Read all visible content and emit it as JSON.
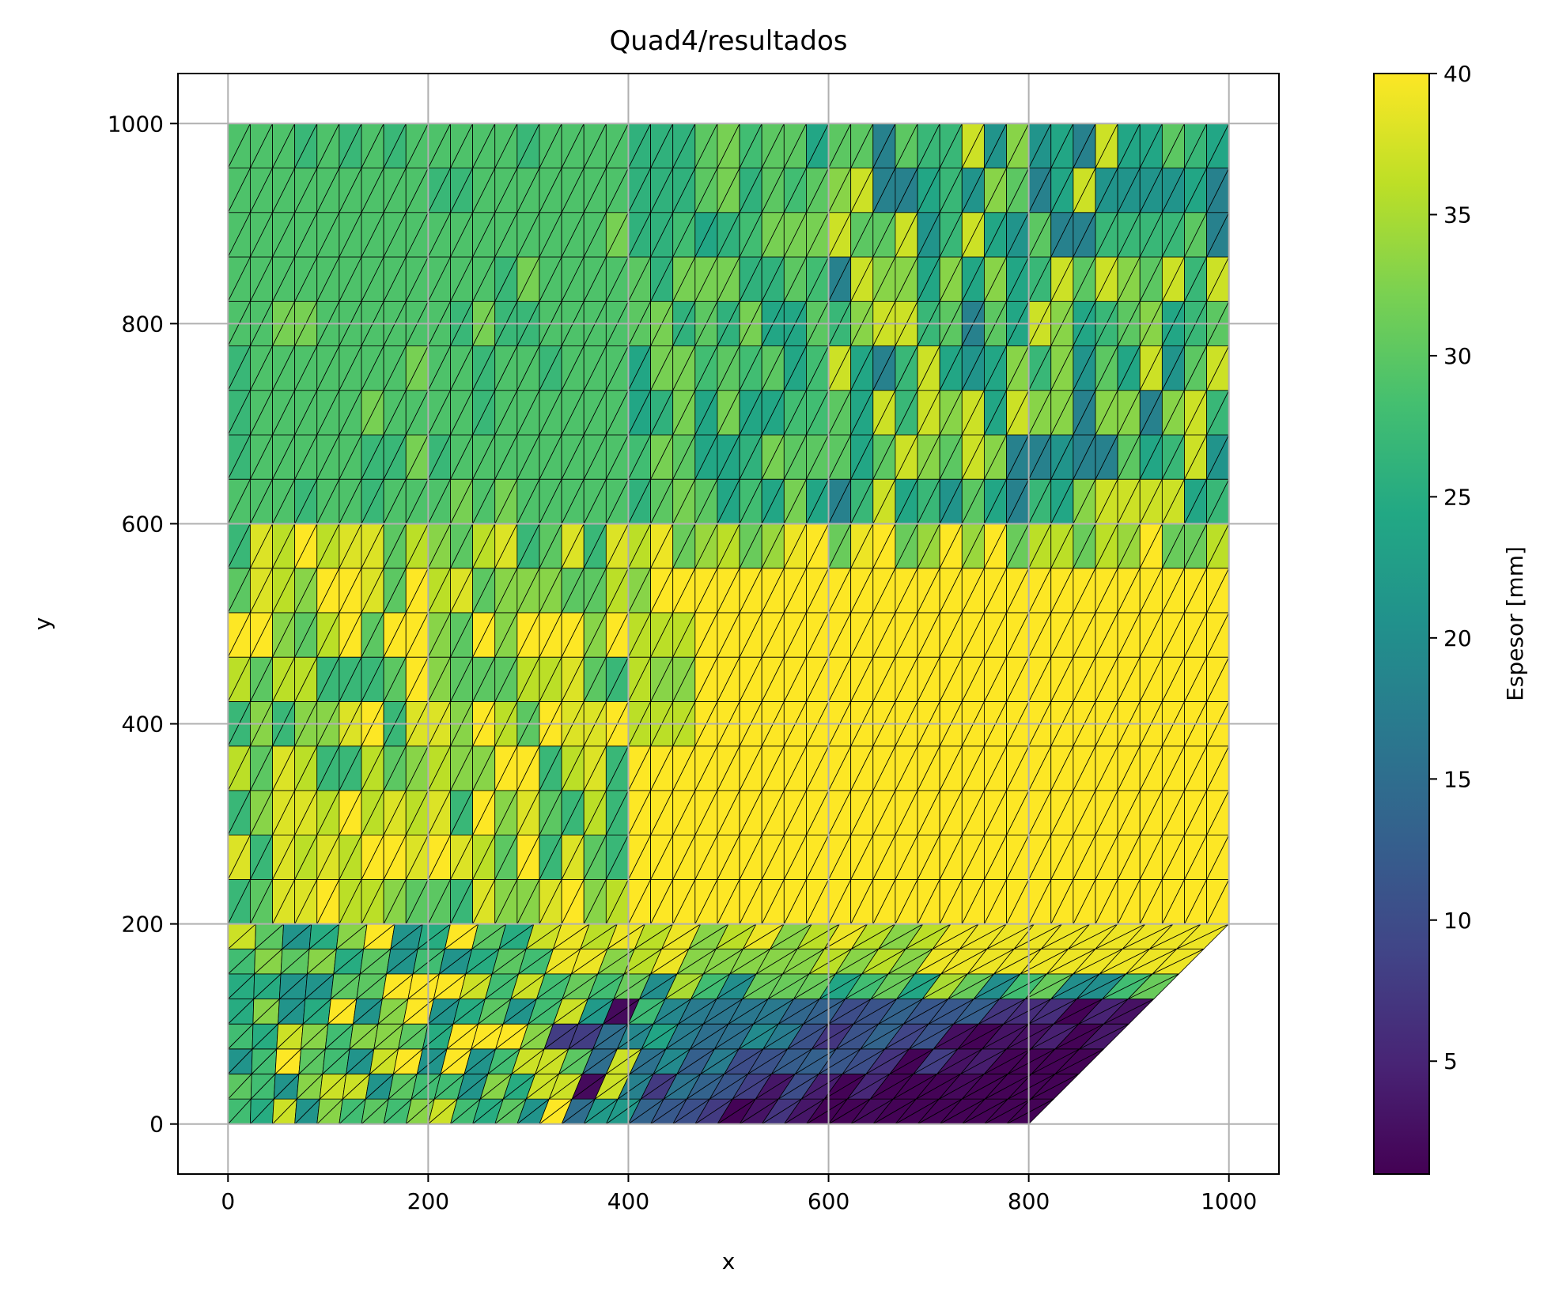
{
  "chart_data": {
    "type": "heatmap",
    "title": "Quad4/resultados",
    "xlabel": "x",
    "ylabel": "y",
    "xlim": [
      -50,
      1050
    ],
    "ylim": [
      -50,
      1050
    ],
    "xticks": [
      0,
      200,
      400,
      600,
      800,
      1000
    ],
    "yticks": [
      0,
      200,
      400,
      600,
      800,
      1000
    ],
    "grid": true,
    "colormap": "viridis",
    "colorbar": {
      "label": "Espesor [mm]",
      "range": [
        1,
        40
      ],
      "ticks": [
        5,
        10,
        15,
        20,
        25,
        30,
        35,
        40
      ]
    },
    "mesh": {
      "element_type": "triangular (quads split along diagonal)",
      "domain_corners": [
        [
          0,
          0
        ],
        [
          800,
          0
        ],
        [
          1000,
          200
        ],
        [
          1000,
          1000
        ],
        [
          0,
          1000
        ]
      ]
    },
    "upper_region": {
      "x_range": [
        0,
        1000
      ],
      "y_range": [
        200,
        1000
      ],
      "columns": 45,
      "rows": 18,
      "zones": [
        {
          "name": "left band",
          "x_range": [
            0,
            400
          ],
          "y_range": [
            600,
            1000
          ],
          "thickness_typical": 29
        },
        {
          "name": "top right",
          "x_range": [
            600,
            1000
          ],
          "y_range": [
            600,
            1000
          ],
          "thickness_range": [
            18,
            37
          ]
        },
        {
          "name": "lower left",
          "x_range": [
            0,
            400
          ],
          "y_range": [
            200,
            600
          ],
          "thickness_range": [
            27,
            40
          ]
        },
        {
          "name": "lower right",
          "x_range": [
            400,
            1000
          ],
          "y_range": [
            200,
            560
          ],
          "thickness_typical": 40
        }
      ]
    },
    "lower_region": {
      "x_range": [
        0,
        1000
      ],
      "y_range": [
        0,
        200
      ],
      "columns": 36,
      "rows": 8,
      "zones": [
        {
          "name": "left",
          "x_range": [
            0,
            400
          ],
          "thickness_range": [
            20,
            40
          ]
        },
        {
          "name": "bottom right",
          "x_range": [
            330,
            1000
          ],
          "y_range": [
            0,
            125
          ],
          "thickness_range": [
            1,
            10
          ]
        },
        {
          "name": "top right",
          "x_range": [
            400,
            1000
          ],
          "y_range": [
            150,
            200
          ],
          "thickness_typical": 39
        }
      ]
    }
  }
}
